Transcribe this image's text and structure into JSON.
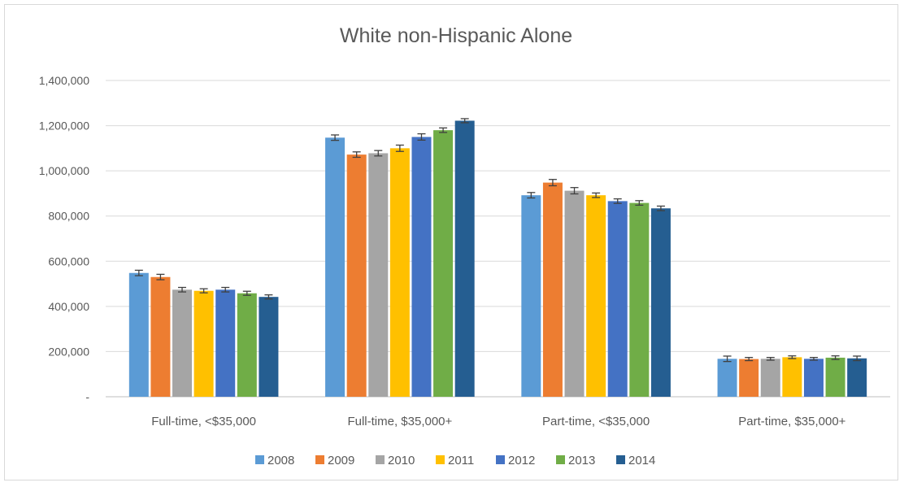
{
  "chart_data": {
    "type": "bar",
    "title": "White non-Hispanic Alone",
    "xlabel": "",
    "ylabel": "",
    "ylim": [
      0,
      1400000
    ],
    "yticks": [
      0,
      200000,
      400000,
      600000,
      800000,
      1000000,
      1200000,
      1400000
    ],
    "ytick_labels": [
      "-",
      "200,000",
      "400,000",
      "600,000",
      "800,000",
      "1,000,000",
      "1,200,000",
      "1,400,000"
    ],
    "grid": true,
    "legend_position": "bottom",
    "error_bars": true,
    "categories": [
      "Full-time, <$35,000",
      "Full-time, $35,000+",
      "Part-time, <$35,000",
      "Part-time, $35,000+"
    ],
    "series": [
      {
        "name": "2008",
        "color": "#5b9bd5",
        "values": [
          548000,
          1147000,
          892000,
          168000
        ],
        "errors": [
          12000,
          12000,
          12000,
          12000
        ]
      },
      {
        "name": "2009",
        "color": "#ed7d31",
        "values": [
          530000,
          1072000,
          948000,
          167000
        ],
        "errors": [
          12000,
          12000,
          14000,
          7000
        ]
      },
      {
        "name": "2010",
        "color": "#a5a5a5",
        "values": [
          474000,
          1078000,
          912000,
          168000
        ],
        "errors": [
          10000,
          12000,
          14000,
          6000
        ]
      },
      {
        "name": "2011",
        "color": "#ffc000",
        "values": [
          469000,
          1100000,
          892000,
          175000
        ],
        "errors": [
          9000,
          14000,
          10000,
          6000
        ]
      },
      {
        "name": "2012",
        "color": "#4472c4",
        "values": [
          474000,
          1150000,
          866000,
          168000
        ],
        "errors": [
          10000,
          14000,
          10000,
          6000
        ]
      },
      {
        "name": "2013",
        "color": "#70ad47",
        "values": [
          458000,
          1180000,
          858000,
          173000
        ],
        "errors": [
          9000,
          10000,
          10000,
          8000
        ]
      },
      {
        "name": "2014",
        "color": "#255e91",
        "values": [
          442000,
          1222000,
          834000,
          170000
        ],
        "errors": [
          9000,
          9000,
          10000,
          10000
        ]
      }
    ]
  }
}
